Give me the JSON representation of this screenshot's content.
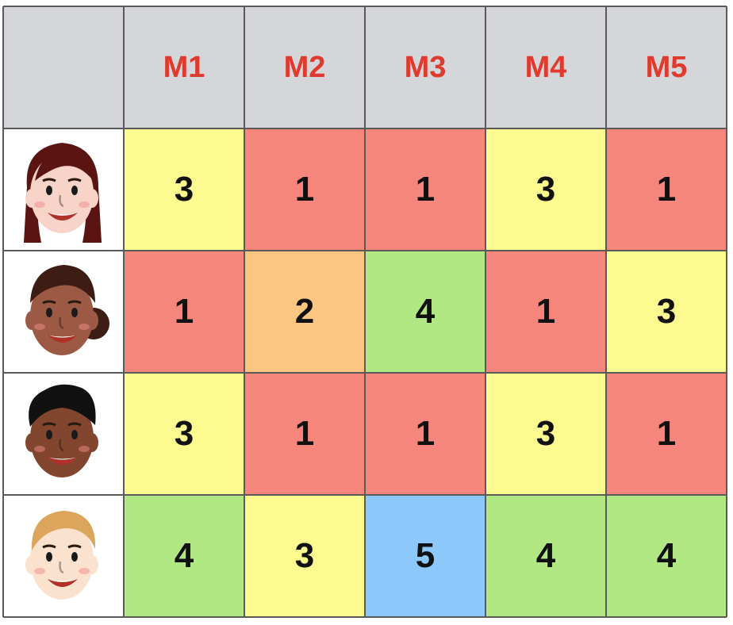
{
  "chart_data": {
    "type": "table",
    "columns": [
      "M1",
      "M2",
      "M3",
      "M4",
      "M5"
    ],
    "rows": [
      {
        "avatar": "woman-long-brown-hair-face-icon",
        "values": [
          3,
          1,
          1,
          3,
          1
        ]
      },
      {
        "avatar": "woman-dark-skin-updo-face-icon",
        "values": [
          1,
          2,
          4,
          1,
          3
        ]
      },
      {
        "avatar": "man-curly-black-hair-face-icon",
        "values": [
          3,
          1,
          1,
          3,
          1
        ]
      },
      {
        "avatar": "man-blond-hair-face-icon",
        "values": [
          4,
          3,
          5,
          4,
          4
        ]
      }
    ],
    "value_colors": {
      "1": "#f6857b",
      "2": "#fbc682",
      "3": "#fdfa90",
      "4": "#b2e883",
      "5": "#8cc8fa"
    },
    "header_color": "#d5d6d9",
    "header_text_color": "#e0392d"
  }
}
